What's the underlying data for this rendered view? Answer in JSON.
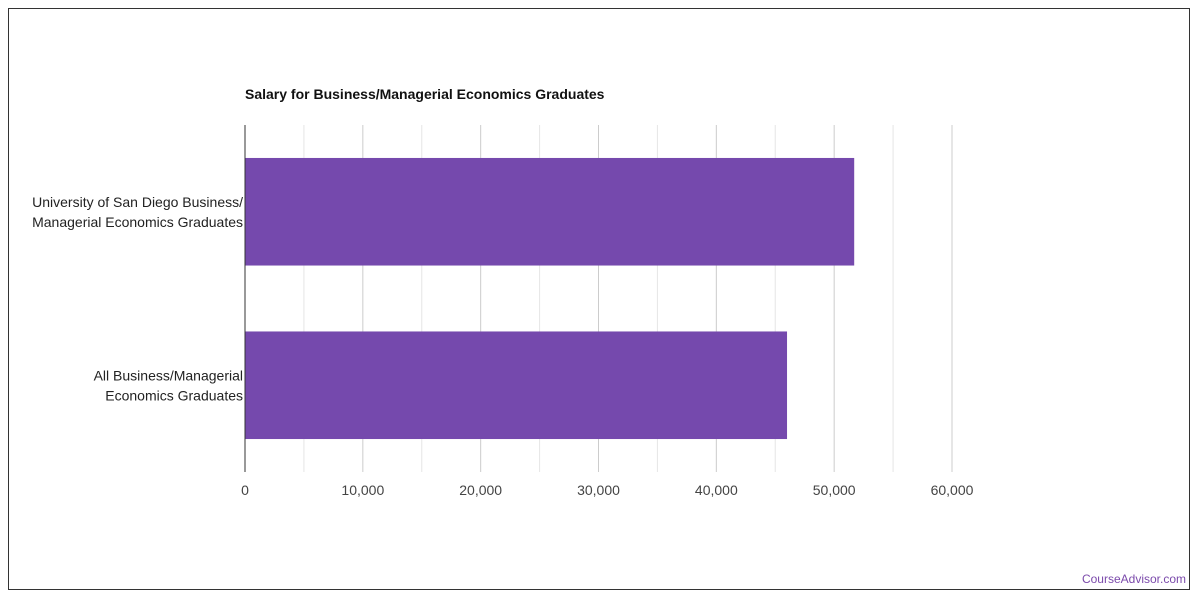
{
  "chart_data": {
    "type": "bar",
    "orientation": "horizontal",
    "title": "Salary for Business/Managerial Economics Graduates",
    "categories": [
      [
        "University of San Diego Business/",
        "Managerial Economics Graduates"
      ],
      [
        "All Business/Managerial",
        "Economics Graduates"
      ]
    ],
    "values": [
      51700,
      46000
    ],
    "xlim": [
      0,
      60000
    ],
    "ticks": [
      0,
      10000,
      20000,
      30000,
      40000,
      50000,
      60000
    ],
    "tick_labels": [
      "0",
      "10,000",
      "20,000",
      "30,000",
      "40,000",
      "50,000",
      "60,000"
    ],
    "grid": true,
    "bar_color": "#7549ad",
    "xlabel": "",
    "ylabel": ""
  },
  "credit": "CourseAdvisor.com"
}
